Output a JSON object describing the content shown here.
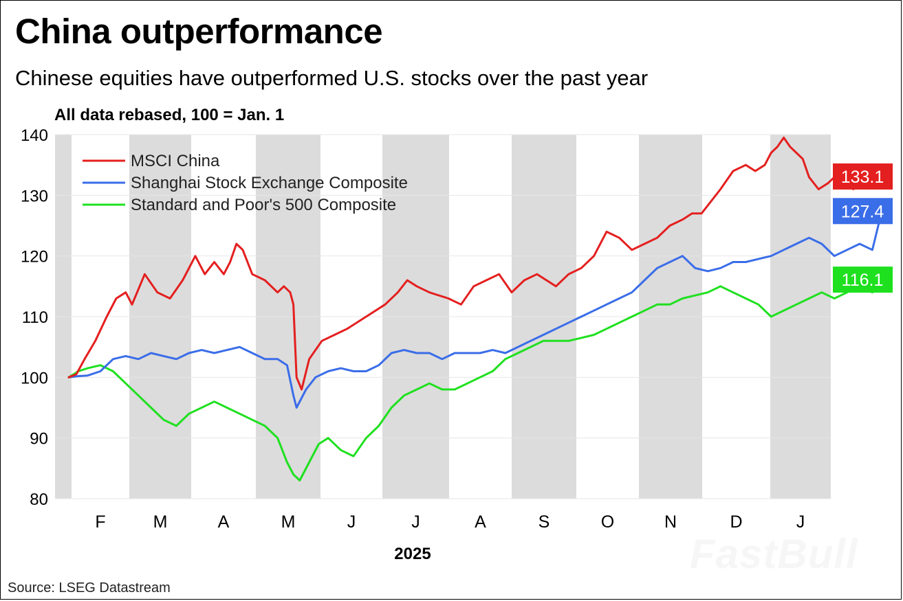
{
  "title": "China outperformance",
  "subtitle": "Chinese equities have outperformed U.S. stocks over the past year",
  "note": "All data rebased, 100 = Jan. 1",
  "source": "Source: LSEG Datastream",
  "watermark": "FastBull",
  "colors": {
    "msci": "#e41f1f",
    "shanghai": "#3a6de8",
    "sp500": "#1fe01f",
    "band": "#dcdcdc"
  },
  "chart_data": {
    "type": "line",
    "title": "China outperformance",
    "subtitle": "Chinese equities have outperformed U.S. stocks over the past year",
    "ylabel": "",
    "xlabel": "2025",
    "ylim": [
      80,
      140
    ],
    "yticks": [
      80,
      90,
      100,
      110,
      120,
      130,
      140
    ],
    "month_labels": [
      "F",
      "M",
      "A",
      "M",
      "J",
      "J",
      "A",
      "S",
      "O",
      "N",
      "D",
      "J"
    ],
    "x_unit": "months since Jan. 1, 2025",
    "xlim": [
      0,
      12.85
    ],
    "grid": "alternating monthly shaded bands",
    "legend_position": "top-left",
    "series": [
      {
        "name": "MSCI China",
        "color": "#e41f1f",
        "end_label": "133.1",
        "points": [
          [
            0,
            100
          ],
          [
            0.12,
            100.5
          ],
          [
            0.25,
            103
          ],
          [
            0.42,
            106
          ],
          [
            0.6,
            110
          ],
          [
            0.75,
            113
          ],
          [
            0.9,
            114
          ],
          [
            1.0,
            112
          ],
          [
            1.2,
            117
          ],
          [
            1.4,
            114
          ],
          [
            1.6,
            113
          ],
          [
            1.8,
            116
          ],
          [
            2.0,
            120
          ],
          [
            2.15,
            117
          ],
          [
            2.3,
            119
          ],
          [
            2.45,
            117
          ],
          [
            2.55,
            119
          ],
          [
            2.65,
            122
          ],
          [
            2.75,
            121
          ],
          [
            2.9,
            117
          ],
          [
            3.1,
            116
          ],
          [
            3.3,
            114
          ],
          [
            3.4,
            115
          ],
          [
            3.5,
            114
          ],
          [
            3.55,
            112
          ],
          [
            3.6,
            100
          ],
          [
            3.68,
            98
          ],
          [
            3.8,
            103
          ],
          [
            4.0,
            106
          ],
          [
            4.2,
            107
          ],
          [
            4.4,
            108
          ],
          [
            4.7,
            110
          ],
          [
            5.0,
            112
          ],
          [
            5.2,
            114
          ],
          [
            5.35,
            116
          ],
          [
            5.5,
            115
          ],
          [
            5.7,
            114
          ],
          [
            6.0,
            113
          ],
          [
            6.2,
            112
          ],
          [
            6.4,
            115
          ],
          [
            6.6,
            116
          ],
          [
            6.8,
            117
          ],
          [
            7.0,
            114
          ],
          [
            7.2,
            116
          ],
          [
            7.4,
            117
          ],
          [
            7.55,
            116
          ],
          [
            7.7,
            115
          ],
          [
            7.9,
            117
          ],
          [
            8.1,
            118
          ],
          [
            8.3,
            120
          ],
          [
            8.5,
            124
          ],
          [
            8.7,
            123
          ],
          [
            8.9,
            121
          ],
          [
            9.1,
            122
          ],
          [
            9.3,
            123
          ],
          [
            9.5,
            125
          ],
          [
            9.7,
            126
          ],
          [
            9.85,
            127
          ],
          [
            10.0,
            127
          ],
          [
            10.15,
            129
          ],
          [
            10.3,
            131
          ],
          [
            10.5,
            134
          ],
          [
            10.7,
            135
          ],
          [
            10.85,
            134
          ],
          [
            11.0,
            135
          ],
          [
            11.1,
            137
          ],
          [
            11.2,
            138
          ],
          [
            11.3,
            139.5
          ],
          [
            11.4,
            138
          ],
          [
            11.5,
            137
          ],
          [
            11.6,
            136
          ],
          [
            11.7,
            133
          ],
          [
            11.85,
            131
          ],
          [
            12.0,
            132
          ],
          [
            12.1,
            133
          ],
          [
            12.25,
            132
          ],
          [
            12.4,
            131
          ],
          [
            12.55,
            133
          ],
          [
            12.65,
            134
          ],
          [
            12.75,
            132
          ],
          [
            12.85,
            133.1
          ]
        ]
      },
      {
        "name": "Shanghai Stock Exchange Composite",
        "color": "#3a6de8",
        "end_label": "127.4",
        "points": [
          [
            0,
            100
          ],
          [
            0.15,
            100.2
          ],
          [
            0.3,
            100.3
          ],
          [
            0.5,
            101
          ],
          [
            0.7,
            103
          ],
          [
            0.9,
            103.5
          ],
          [
            1.1,
            103
          ],
          [
            1.3,
            104
          ],
          [
            1.5,
            103.5
          ],
          [
            1.7,
            103
          ],
          [
            1.9,
            104
          ],
          [
            2.1,
            104.5
          ],
          [
            2.3,
            104
          ],
          [
            2.5,
            104.5
          ],
          [
            2.7,
            105
          ],
          [
            2.9,
            104
          ],
          [
            3.1,
            103
          ],
          [
            3.3,
            103
          ],
          [
            3.45,
            102
          ],
          [
            3.55,
            97
          ],
          [
            3.6,
            95
          ],
          [
            3.75,
            98
          ],
          [
            3.9,
            100
          ],
          [
            4.1,
            101
          ],
          [
            4.3,
            101.5
          ],
          [
            4.5,
            101
          ],
          [
            4.7,
            101
          ],
          [
            4.9,
            102
          ],
          [
            5.1,
            104
          ],
          [
            5.3,
            104.5
          ],
          [
            5.5,
            104
          ],
          [
            5.7,
            104
          ],
          [
            5.9,
            103
          ],
          [
            6.1,
            104
          ],
          [
            6.3,
            104
          ],
          [
            6.5,
            104
          ],
          [
            6.7,
            104.5
          ],
          [
            6.9,
            104
          ],
          [
            7.1,
            105
          ],
          [
            7.3,
            106
          ],
          [
            7.5,
            107
          ],
          [
            7.7,
            108
          ],
          [
            7.9,
            109
          ],
          [
            8.1,
            110
          ],
          [
            8.3,
            111
          ],
          [
            8.5,
            112
          ],
          [
            8.7,
            113
          ],
          [
            8.9,
            114
          ],
          [
            9.1,
            116
          ],
          [
            9.3,
            118
          ],
          [
            9.5,
            119
          ],
          [
            9.7,
            120
          ],
          [
            9.9,
            118
          ],
          [
            10.1,
            117.5
          ],
          [
            10.3,
            118
          ],
          [
            10.5,
            119
          ],
          [
            10.7,
            119
          ],
          [
            10.9,
            119.5
          ],
          [
            11.1,
            120
          ],
          [
            11.3,
            121
          ],
          [
            11.5,
            122
          ],
          [
            11.7,
            123
          ],
          [
            11.9,
            122
          ],
          [
            12.1,
            120
          ],
          [
            12.3,
            121
          ],
          [
            12.5,
            122
          ],
          [
            12.7,
            121
          ],
          [
            12.85,
            127.4
          ]
        ]
      },
      {
        "name": "Standard and Poor's 500 Composite",
        "color": "#1fe01f",
        "end_label": "116.1",
        "points": [
          [
            0,
            100
          ],
          [
            0.15,
            101
          ],
          [
            0.3,
            101.5
          ],
          [
            0.5,
            102
          ],
          [
            0.7,
            101
          ],
          [
            0.9,
            99
          ],
          [
            1.1,
            97
          ],
          [
            1.3,
            95
          ],
          [
            1.5,
            93
          ],
          [
            1.7,
            92
          ],
          [
            1.9,
            94
          ],
          [
            2.1,
            95
          ],
          [
            2.3,
            96
          ],
          [
            2.5,
            95
          ],
          [
            2.7,
            94
          ],
          [
            2.9,
            93
          ],
          [
            3.1,
            92
          ],
          [
            3.3,
            90
          ],
          [
            3.45,
            86
          ],
          [
            3.55,
            84
          ],
          [
            3.65,
            83
          ],
          [
            3.8,
            86
          ],
          [
            3.95,
            89
          ],
          [
            4.1,
            90
          ],
          [
            4.3,
            88
          ],
          [
            4.5,
            87
          ],
          [
            4.7,
            90
          ],
          [
            4.9,
            92
          ],
          [
            5.1,
            95
          ],
          [
            5.3,
            97
          ],
          [
            5.5,
            98
          ],
          [
            5.7,
            99
          ],
          [
            5.9,
            98
          ],
          [
            6.1,
            98
          ],
          [
            6.3,
            99
          ],
          [
            6.5,
            100
          ],
          [
            6.7,
            101
          ],
          [
            6.9,
            103
          ],
          [
            7.1,
            104
          ],
          [
            7.3,
            105
          ],
          [
            7.5,
            106
          ],
          [
            7.7,
            106
          ],
          [
            7.9,
            106
          ],
          [
            8.1,
            106.5
          ],
          [
            8.3,
            107
          ],
          [
            8.5,
            108
          ],
          [
            8.7,
            109
          ],
          [
            8.9,
            110
          ],
          [
            9.1,
            111
          ],
          [
            9.3,
            112
          ],
          [
            9.5,
            112
          ],
          [
            9.7,
            113
          ],
          [
            9.9,
            113.5
          ],
          [
            10.1,
            114
          ],
          [
            10.3,
            115
          ],
          [
            10.5,
            114
          ],
          [
            10.7,
            113
          ],
          [
            10.9,
            112
          ],
          [
            11.1,
            110
          ],
          [
            11.3,
            111
          ],
          [
            11.5,
            112
          ],
          [
            11.7,
            113
          ],
          [
            11.9,
            114
          ],
          [
            12.1,
            113
          ],
          [
            12.3,
            114
          ],
          [
            12.5,
            115
          ],
          [
            12.7,
            114
          ],
          [
            12.85,
            116.1
          ]
        ]
      }
    ]
  }
}
